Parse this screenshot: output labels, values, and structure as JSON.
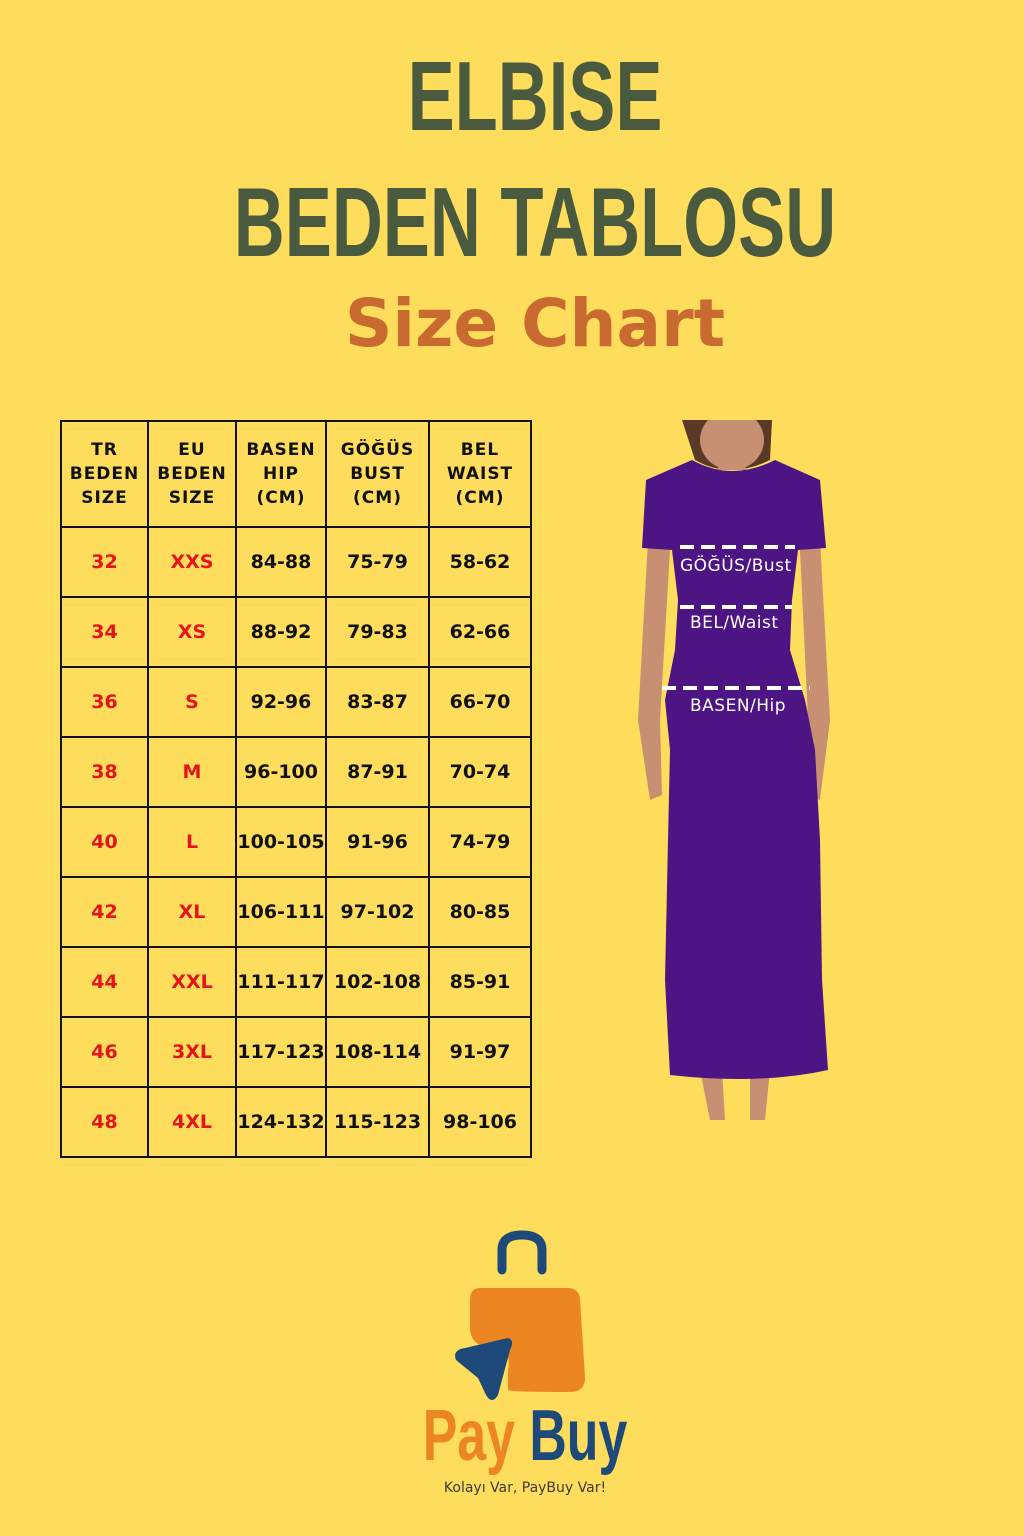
{
  "title": {
    "line1": "ELBISE",
    "line2": "BEDEN TABLOSU",
    "line3": "Size Chart"
  },
  "table": {
    "headers": [
      [
        "TR",
        "BEDEN",
        "SIZE"
      ],
      [
        "EU",
        "BEDEN",
        "SIZE"
      ],
      [
        "BASEN",
        "HIP",
        "(CM)"
      ],
      [
        "GÖĞÜS",
        "BUST",
        "(CM)"
      ],
      [
        "BEL",
        "WAIST",
        "(CM)"
      ]
    ],
    "rows": [
      [
        "32",
        "XXS",
        "84-88",
        "75-79",
        "58-62"
      ],
      [
        "34",
        "XS",
        "88-92",
        "79-83",
        "62-66"
      ],
      [
        "36",
        "S",
        "92-96",
        "83-87",
        "66-70"
      ],
      [
        "38",
        "M",
        "96-100",
        "87-91",
        "70-74"
      ],
      [
        "40",
        "L",
        "100-105",
        "91-96",
        "74-79"
      ],
      [
        "42",
        "XL",
        "106-111",
        "97-102",
        "80-85"
      ],
      [
        "44",
        "XXL",
        "111-117",
        "102-108",
        "85-91"
      ],
      [
        "46",
        "3XL",
        "117-123",
        "108-114",
        "91-97"
      ],
      [
        "48",
        "4XL",
        "124-132",
        "115-123",
        "98-106"
      ]
    ]
  },
  "figure": {
    "bust_label": "GÖĞÜS/Bust",
    "waist_label": "BEL/Waist",
    "hip_label": "BASEN/Hip",
    "dress_color": "#4c1583"
  },
  "brand": {
    "pay": "Pay",
    "buy": "Buy",
    "tagline": "Kolayı Var, PayBuy Var!",
    "orange": "#ec8622",
    "blue": "#1d4a78"
  },
  "colors": {
    "background": "#fedd5c",
    "title": "#4a5a3f",
    "subtitle": "#c96a30",
    "size_red": "#e5141a"
  }
}
